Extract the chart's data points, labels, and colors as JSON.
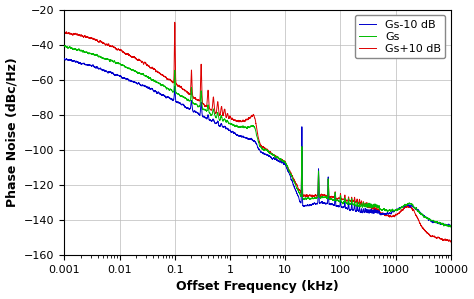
{
  "xlabel": "Offset Frequency (kHz)",
  "ylabel": "Phase Noise (dBc/Hz)",
  "xlim": [
    0.001,
    10000
  ],
  "ylim": [
    -160,
    -20
  ],
  "yticks": [
    -160,
    -140,
    -120,
    -100,
    -80,
    -60,
    -40,
    -20
  ],
  "legend": [
    "Gs-10 dB",
    "Gs",
    "Gs+10 dB"
  ],
  "colors": [
    "#0000cc",
    "#00bb00",
    "#dd0000"
  ],
  "figsize": [
    4.74,
    2.99
  ],
  "dpi": 100,
  "blue_breakpoints": [
    0.001,
    0.003,
    0.01,
    0.03,
    0.1,
    0.3,
    1.0,
    3.0,
    10,
    20,
    50,
    200,
    1000,
    3000,
    10000
  ],
  "blue_values": [
    -48,
    -52,
    -58,
    -64,
    -72,
    -80,
    -90,
    -100,
    -108,
    -132,
    -130,
    -135,
    -138,
    -141,
    -143
  ],
  "green_breakpoints": [
    0.001,
    0.003,
    0.01,
    0.03,
    0.1,
    0.3,
    1.0,
    3.0,
    10,
    20,
    50,
    200,
    1000,
    3000,
    10000
  ],
  "green_values": [
    -41,
    -45,
    -51,
    -58,
    -67,
    -76,
    -87,
    -97,
    -107,
    -128,
    -127,
    -132,
    -135,
    -138,
    -144
  ],
  "red_breakpoints": [
    0.001,
    0.003,
    0.01,
    0.03,
    0.1,
    0.3,
    1.0,
    3.0,
    10,
    20,
    50,
    200,
    1000,
    3000,
    10000
  ],
  "red_values": [
    -33,
    -36,
    -43,
    -51,
    -62,
    -73,
    -85,
    -96,
    -107,
    -126,
    -126,
    -130,
    -140,
    -148,
    -152
  ],
  "noise_amplitude": 1.5,
  "noise_seed": 42
}
